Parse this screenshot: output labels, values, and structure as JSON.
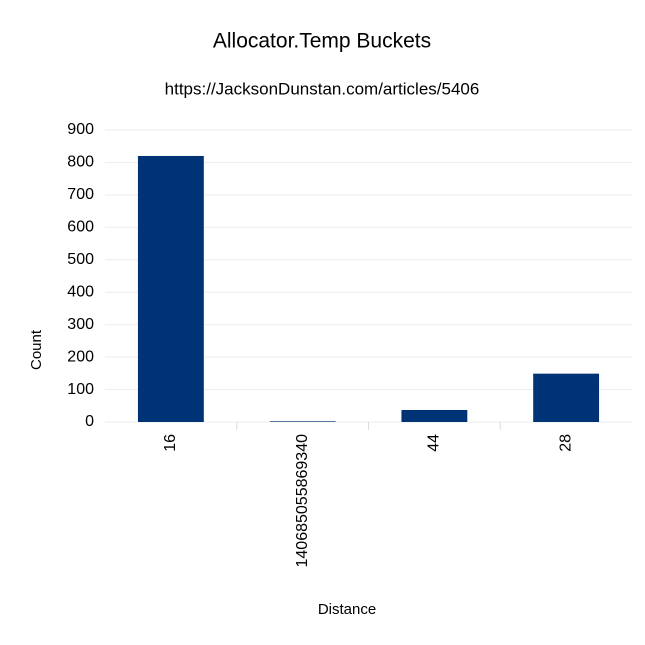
{
  "chart_data": {
    "type": "bar",
    "title": "Allocator.Temp Buckets",
    "subtitle": "https://JacksonDunstan.com/articles/5406",
    "x_label": "Distance",
    "y_label": "Count",
    "categories": [
      "16",
      "140685055869340",
      "44",
      "28"
    ],
    "values": [
      820,
      2,
      37,
      149
    ],
    "color": "#003375",
    "ylim": [
      0,
      900
    ],
    "yticks": [
      0,
      100,
      200,
      300,
      400,
      500,
      600,
      700,
      800,
      900
    ],
    "grid": true
  }
}
